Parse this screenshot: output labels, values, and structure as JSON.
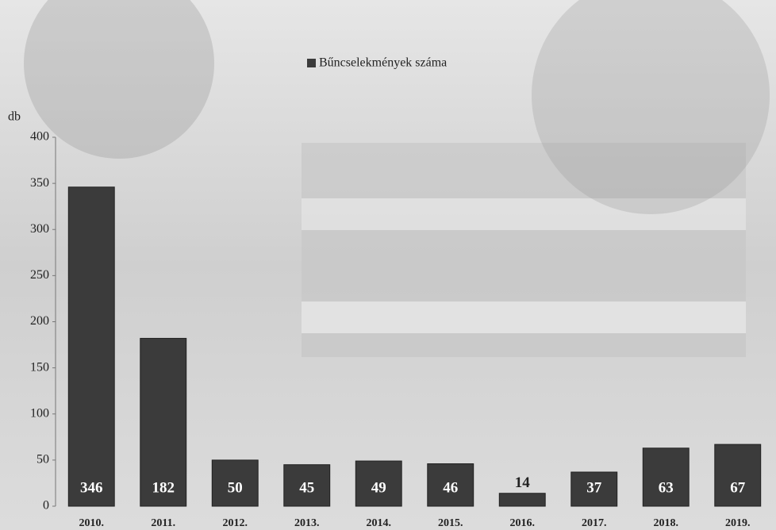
{
  "chart_data": {
    "type": "bar",
    "y_label": "db",
    "categories": [
      "2010.",
      "2011.",
      "2012.",
      "2013.",
      "2014.",
      "2015.",
      "2016.",
      "2017.",
      "2018.",
      "2019."
    ],
    "series": [
      {
        "name": "Bűncselekmények száma",
        "color": "#3b3b3b",
        "values": [
          346,
          182,
          50,
          45,
          49,
          46,
          14,
          37,
          63,
          67
        ]
      }
    ],
    "ylim": [
      0,
      400
    ],
    "yticks": [
      0,
      50,
      100,
      150,
      200,
      250,
      300,
      350,
      400
    ],
    "grid": false,
    "legend": "top"
  }
}
